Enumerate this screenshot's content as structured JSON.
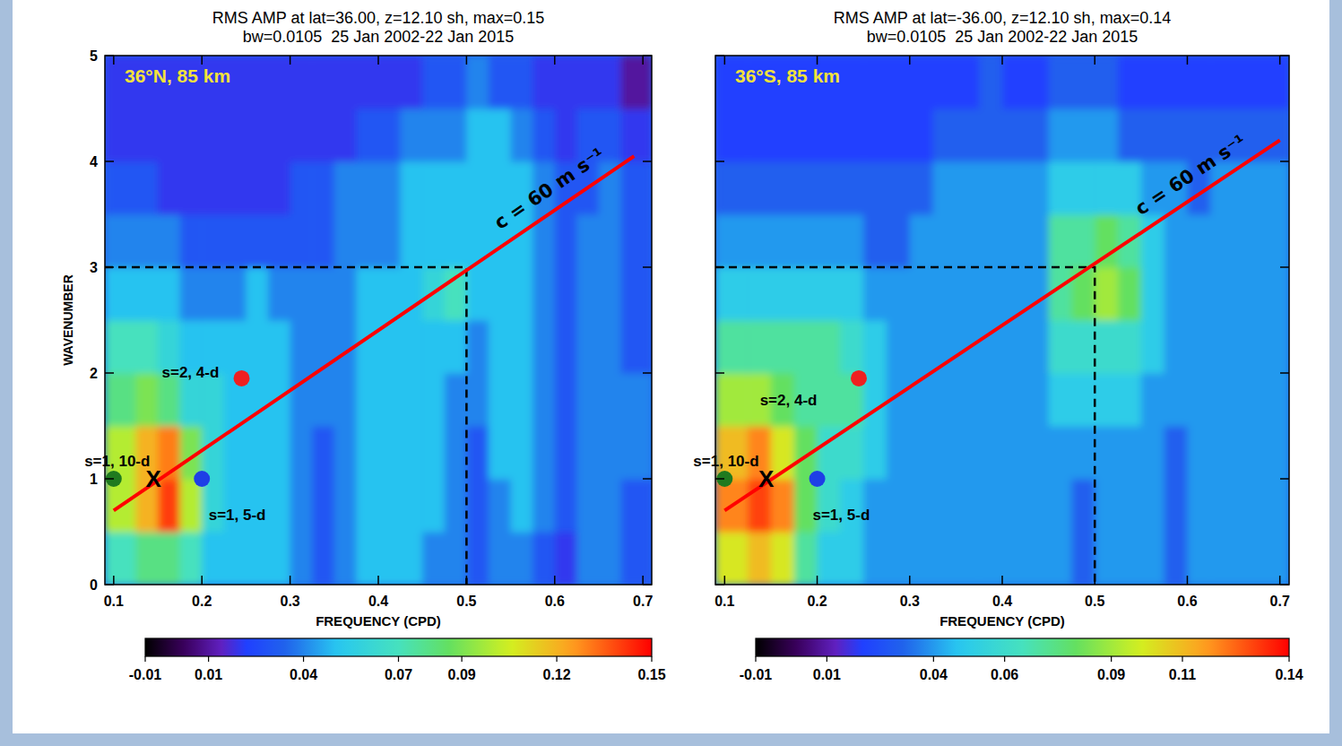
{
  "chart_data": [
    {
      "type": "heatmap",
      "title": "RMS AMP at lat=36.00, z=12.10 sh, max=0.15",
      "subtitle": "bw=0.0105  25 Jan 2002-22 Jan 2015",
      "x_label": "FREQUENCY (CPD)",
      "y_label": "WAVENUMBER",
      "xlim": [
        0.09,
        0.71
      ],
      "ylim": [
        0,
        5
      ],
      "xticks": [
        0.1,
        0.2,
        0.3,
        0.4,
        0.5,
        0.6,
        0.7
      ],
      "yticks": [
        0,
        1,
        2,
        3,
        4,
        5
      ],
      "x_edges": [
        0.09,
        0.125,
        0.15,
        0.175,
        0.2,
        0.225,
        0.25,
        0.275,
        0.3,
        0.325,
        0.35,
        0.375,
        0.4,
        0.425,
        0.45,
        0.475,
        0.5,
        0.525,
        0.55,
        0.575,
        0.6,
        0.625,
        0.65,
        0.675,
        0.71
      ],
      "y_edges": [
        0,
        0.5,
        1,
        1.5,
        2,
        2.5,
        3,
        3.5,
        4,
        4.5,
        5
      ],
      "cells": [
        [
          0.07,
          0.08,
          0.08,
          0.07,
          0.05,
          0.05,
          0.05,
          0.05,
          0.04,
          0.03,
          0.04,
          0.05,
          0.05,
          0.05,
          0.04,
          0.04,
          0.03,
          0.04,
          0.04,
          0.03,
          0.02,
          0.04,
          0.04,
          0.03
        ],
        [
          0.1,
          0.12,
          0.14,
          0.1,
          0.06,
          0.05,
          0.05,
          0.05,
          0.04,
          0.03,
          0.04,
          0.05,
          0.05,
          0.05,
          0.05,
          0.04,
          0.03,
          0.04,
          0.05,
          0.04,
          0.03,
          0.04,
          0.04,
          0.03
        ],
        [
          0.1,
          0.12,
          0.13,
          0.09,
          0.06,
          0.05,
          0.05,
          0.05,
          0.04,
          0.03,
          0.04,
          0.05,
          0.05,
          0.05,
          0.05,
          0.04,
          0.03,
          0.05,
          0.05,
          0.04,
          0.03,
          0.04,
          0.04,
          0.04
        ],
        [
          0.08,
          0.09,
          0.08,
          0.06,
          0.06,
          0.05,
          0.05,
          0.05,
          0.04,
          0.04,
          0.04,
          0.05,
          0.05,
          0.05,
          0.05,
          0.04,
          0.04,
          0.05,
          0.05,
          0.04,
          0.03,
          0.04,
          0.04,
          0.04
        ],
        [
          0.07,
          0.07,
          0.06,
          0.05,
          0.05,
          0.05,
          0.05,
          0.05,
          0.04,
          0.04,
          0.04,
          0.05,
          0.05,
          0.05,
          0.05,
          0.05,
          0.04,
          0.05,
          0.05,
          0.04,
          0.03,
          0.04,
          0.04,
          0.03
        ],
        [
          0.05,
          0.05,
          0.05,
          0.04,
          0.04,
          0.04,
          0.05,
          0.04,
          0.04,
          0.04,
          0.04,
          0.05,
          0.05,
          0.05,
          0.06,
          0.07,
          0.05,
          0.05,
          0.05,
          0.04,
          0.03,
          0.04,
          0.04,
          0.03
        ],
        [
          0.04,
          0.04,
          0.04,
          0.03,
          0.03,
          0.03,
          0.03,
          0.03,
          0.03,
          0.03,
          0.04,
          0.04,
          0.04,
          0.05,
          0.05,
          0.05,
          0.05,
          0.05,
          0.05,
          0.04,
          0.03,
          0.04,
          0.04,
          0.03
        ],
        [
          0.03,
          0.03,
          0.02,
          0.02,
          0.02,
          0.02,
          0.02,
          0.02,
          0.03,
          0.03,
          0.04,
          0.04,
          0.04,
          0.05,
          0.05,
          0.05,
          0.05,
          0.05,
          0.05,
          0.04,
          0.03,
          0.03,
          0.04,
          0.03
        ],
        [
          0.02,
          0.02,
          0.02,
          0.02,
          0.02,
          0.02,
          0.02,
          0.02,
          0.02,
          0.02,
          0.02,
          0.03,
          0.03,
          0.04,
          0.04,
          0.04,
          0.05,
          0.05,
          0.04,
          0.03,
          0.02,
          0.03,
          0.03,
          0.02
        ],
        [
          0.02,
          0.02,
          0.02,
          0.02,
          0.02,
          0.02,
          0.02,
          0.02,
          0.02,
          0.02,
          0.02,
          0.02,
          0.02,
          0.02,
          0.03,
          0.03,
          0.04,
          0.03,
          0.03,
          0.02,
          0.02,
          0.02,
          0.02,
          0.01
        ]
      ],
      "color_range": [
        -0.01,
        0.15
      ],
      "color_ticks": [
        -0.01,
        0.01,
        0.04,
        0.07,
        0.09,
        0.12,
        0.15
      ],
      "inset_label": "36°N, 85 km",
      "line": {
        "x": [
          0.1,
          0.69
        ],
        "y": [
          0.7,
          4.05
        ],
        "color": "#ff0000",
        "label": "c = 60 m s⁻¹"
      },
      "guide": {
        "x": 0.5,
        "y": 3
      },
      "points": [
        {
          "x": 0.1,
          "y": 1,
          "color": "#1f7a1f"
        },
        {
          "x": 0.2,
          "y": 1,
          "color": "#1e3fe6"
        },
        {
          "x": 0.245,
          "y": 1.95,
          "color": "#ee2020"
        }
      ],
      "marker_x": {
        "x": 0.145,
        "y": 1,
        "label": "X"
      },
      "annotations": [
        {
          "text": "s=1, 10-d",
          "x": 0.104,
          "y": 1.17
        },
        {
          "text": "s=1, 5-d",
          "x": 0.24,
          "y": 0.66
        },
        {
          "text": "s=2, 4-d",
          "x": 0.187,
          "y": 2.01
        }
      ]
    },
    {
      "type": "heatmap",
      "title": "RMS AMP at lat=-36.00, z=12.10 sh, max=0.14",
      "subtitle": "bw=0.0105  25 Jan 2002-22 Jan 2015",
      "x_label": "FREQUENCY (CPD)",
      "tick_labels": "x",
      "xlim": [
        0.09,
        0.71
      ],
      "ylim": [
        0,
        5
      ],
      "xticks": [
        0.1,
        0.2,
        0.3,
        0.4,
        0.5,
        0.6,
        0.7
      ],
      "yticks": [
        0,
        1,
        2,
        3,
        4,
        5
      ],
      "x_edges": [
        0.09,
        0.125,
        0.15,
        0.175,
        0.2,
        0.225,
        0.25,
        0.275,
        0.3,
        0.325,
        0.35,
        0.375,
        0.4,
        0.425,
        0.45,
        0.475,
        0.5,
        0.525,
        0.55,
        0.575,
        0.6,
        0.625,
        0.65,
        0.675,
        0.71
      ],
      "y_edges": [
        0,
        0.5,
        1,
        1.5,
        2,
        2.5,
        3,
        3.5,
        4,
        4.5,
        5
      ],
      "cells": [
        [
          0.1,
          0.11,
          0.1,
          0.07,
          0.05,
          0.05,
          0.04,
          0.04,
          0.04,
          0.04,
          0.04,
          0.04,
          0.04,
          0.04,
          0.04,
          0.03,
          0.04,
          0.04,
          0.04,
          0.03,
          0.04,
          0.04,
          0.04,
          0.04
        ],
        [
          0.12,
          0.13,
          0.12,
          0.08,
          0.06,
          0.05,
          0.04,
          0.04,
          0.04,
          0.04,
          0.04,
          0.04,
          0.04,
          0.04,
          0.04,
          0.03,
          0.04,
          0.04,
          0.04,
          0.03,
          0.04,
          0.04,
          0.04,
          0.04
        ],
        [
          0.11,
          0.12,
          0.1,
          0.08,
          0.06,
          0.06,
          0.05,
          0.04,
          0.04,
          0.04,
          0.04,
          0.04,
          0.04,
          0.04,
          0.04,
          0.04,
          0.04,
          0.04,
          0.04,
          0.03,
          0.04,
          0.04,
          0.04,
          0.04
        ],
        [
          0.09,
          0.09,
          0.08,
          0.07,
          0.07,
          0.07,
          0.05,
          0.04,
          0.04,
          0.04,
          0.04,
          0.04,
          0.04,
          0.04,
          0.05,
          0.05,
          0.05,
          0.05,
          0.04,
          0.04,
          0.04,
          0.04,
          0.04,
          0.04
        ],
        [
          0.07,
          0.07,
          0.07,
          0.07,
          0.07,
          0.06,
          0.05,
          0.04,
          0.04,
          0.04,
          0.04,
          0.04,
          0.04,
          0.04,
          0.06,
          0.06,
          0.06,
          0.06,
          0.05,
          0.04,
          0.04,
          0.04,
          0.04,
          0.04
        ],
        [
          0.05,
          0.05,
          0.05,
          0.05,
          0.05,
          0.05,
          0.04,
          0.04,
          0.04,
          0.04,
          0.04,
          0.04,
          0.04,
          0.04,
          0.07,
          0.08,
          0.09,
          0.08,
          0.05,
          0.04,
          0.04,
          0.04,
          0.04,
          0.04
        ],
        [
          0.04,
          0.04,
          0.04,
          0.04,
          0.04,
          0.04,
          0.03,
          0.03,
          0.04,
          0.04,
          0.04,
          0.04,
          0.04,
          0.04,
          0.07,
          0.07,
          0.08,
          0.07,
          0.05,
          0.04,
          0.04,
          0.04,
          0.04,
          0.04
        ],
        [
          0.03,
          0.03,
          0.03,
          0.03,
          0.03,
          0.03,
          0.03,
          0.03,
          0.03,
          0.04,
          0.04,
          0.04,
          0.04,
          0.04,
          0.05,
          0.05,
          0.05,
          0.05,
          0.04,
          0.04,
          0.03,
          0.04,
          0.04,
          0.04
        ],
        [
          0.02,
          0.02,
          0.02,
          0.02,
          0.02,
          0.02,
          0.02,
          0.02,
          0.02,
          0.03,
          0.03,
          0.03,
          0.03,
          0.03,
          0.04,
          0.04,
          0.04,
          0.03,
          0.03,
          0.03,
          0.03,
          0.03,
          0.03,
          0.03
        ],
        [
          0.02,
          0.02,
          0.02,
          0.02,
          0.02,
          0.02,
          0.02,
          0.02,
          0.02,
          0.02,
          0.02,
          0.03,
          0.02,
          0.02,
          0.03,
          0.03,
          0.03,
          0.02,
          0.02,
          0.02,
          0.02,
          0.02,
          0.02,
          0.02
        ]
      ],
      "color_range": [
        -0.01,
        0.14
      ],
      "color_ticks": [
        -0.01,
        0.01,
        0.04,
        0.06,
        0.09,
        0.11,
        0.14
      ],
      "inset_label": "36°S, 85 km",
      "line": {
        "x": [
          0.1,
          0.7
        ],
        "y": [
          0.7,
          4.2
        ],
        "color": "#ff0000",
        "label": "c = 60 m s⁻¹"
      },
      "guide": {
        "x": 0.5,
        "y": 3
      },
      "points": [
        {
          "x": 0.1,
          "y": 1,
          "color": "#1f7a1f"
        },
        {
          "x": 0.2,
          "y": 1,
          "color": "#1e3fe6"
        },
        {
          "x": 0.245,
          "y": 1.95,
          "color": "#ee2020"
        }
      ],
      "marker_x": {
        "x": 0.145,
        "y": 1,
        "label": "X"
      },
      "annotations": [
        {
          "text": "s=1, 10-d",
          "x": 0.1016,
          "y": 1.17
        },
        {
          "text": "s=1, 5-d",
          "x": 0.226,
          "y": 0.66
        },
        {
          "text": "s=2, 4-d",
          "x": 0.169,
          "y": 1.75
        }
      ]
    }
  ]
}
